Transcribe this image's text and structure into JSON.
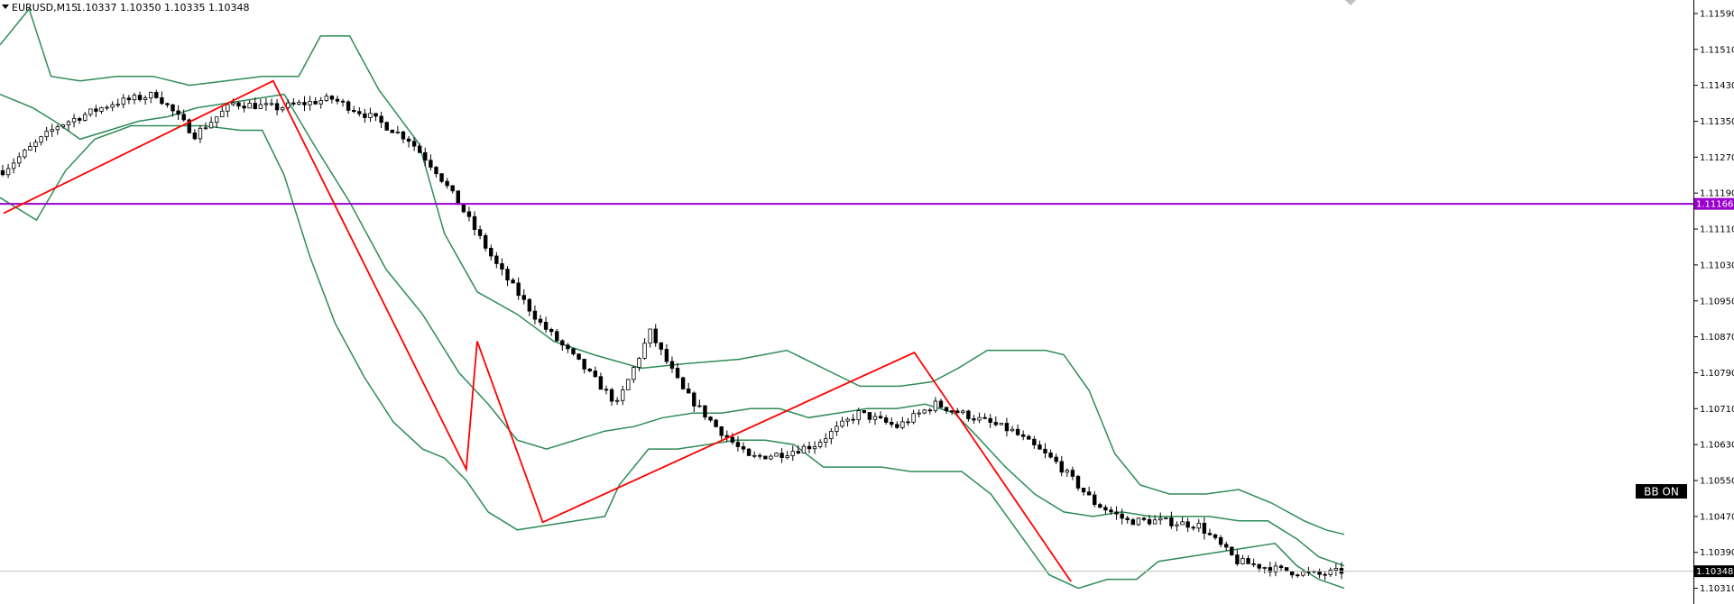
{
  "header": {
    "symbol": "EURUSD,M15",
    "ohlc": "1.10337 1.10350 1.10335 1.10348"
  },
  "price_tags": {
    "hline": "1.11166",
    "bid": "1.10348"
  },
  "bb_button": {
    "label": "BB ON"
  },
  "colors": {
    "background": "#ffffff",
    "bands": "#2e8b57",
    "zigzag": "#ff0000",
    "hline": "#9900cc",
    "bid_line": "#c0c0c0",
    "candle": "#000000"
  },
  "chart_data": {
    "type": "candlestick",
    "title": "",
    "xlabel": "",
    "ylabel": "",
    "ylim": [
      1.10275,
      1.1162
    ],
    "y_ticks": [
      "1.11590",
      "1.11510",
      "1.11430",
      "1.11350",
      "1.11270",
      "1.11190",
      "1.11110",
      "1.11030",
      "1.10950",
      "1.10870",
      "1.10790",
      "1.10710",
      "1.10630",
      "1.10550",
      "1.10470",
      "1.10390",
      "1.10310"
    ],
    "candle_count": 245,
    "horizontal_line": 1.11166,
    "bid": 1.10348,
    "close_anchors": [
      [
        0,
        1.1124
      ],
      [
        10,
        1.1134
      ],
      [
        20,
        1.1139
      ],
      [
        28,
        1.1141
      ],
      [
        35,
        1.1132
      ],
      [
        42,
        1.1139
      ],
      [
        50,
        1.1138
      ],
      [
        60,
        1.114
      ],
      [
        67,
        1.1136
      ],
      [
        74,
        1.1131
      ],
      [
        79,
        1.1124
      ],
      [
        84,
        1.1115
      ],
      [
        90,
        1.1103
      ],
      [
        98,
        1.109
      ],
      [
        106,
        1.108
      ],
      [
        112,
        1.1072
      ],
      [
        118,
        1.1088
      ],
      [
        124,
        1.1075
      ],
      [
        130,
        1.1067
      ],
      [
        136,
        1.106
      ],
      [
        142,
        1.1061
      ],
      [
        148,
        1.1063
      ],
      [
        156,
        1.107
      ],
      [
        163,
        1.1067
      ],
      [
        170,
        1.1072
      ],
      [
        177,
        1.1069
      ],
      [
        184,
        1.1066
      ],
      [
        192,
        1.1059
      ],
      [
        199,
        1.105
      ],
      [
        205,
        1.1046
      ],
      [
        211,
        1.1046
      ],
      [
        218,
        1.1045
      ],
      [
        225,
        1.1037
      ],
      [
        233,
        1.1035
      ],
      [
        240,
        1.1034
      ],
      [
        244,
        1.10348
      ]
    ],
    "zigzag": [
      [
        0,
        1.11145
      ],
      [
        74,
        1.1144
      ],
      [
        127,
        1.10575
      ],
      [
        130,
        1.1086
      ],
      [
        148,
        1.10457
      ],
      [
        250,
        1.10835
      ],
      [
        293,
        1.10325
      ]
    ],
    "bands_upper": [
      [
        0,
        1.1152
      ],
      [
        8,
        1.116
      ],
      [
        14,
        1.1145
      ],
      [
        22,
        1.1144
      ],
      [
        32,
        1.1145
      ],
      [
        42,
        1.1145
      ],
      [
        52,
        1.1143
      ],
      [
        62,
        1.1144
      ],
      [
        72,
        1.1145
      ],
      [
        82,
        1.1145
      ],
      [
        88,
        1.1154
      ],
      [
        96,
        1.1154
      ],
      [
        104,
        1.1142
      ],
      [
        115,
        1.113
      ],
      [
        122,
        1.111
      ],
      [
        131,
        1.1097
      ],
      [
        142,
        1.1092
      ],
      [
        152,
        1.1086
      ],
      [
        163,
        1.1083
      ],
      [
        176,
        1.108
      ],
      [
        188,
        1.1081
      ],
      [
        203,
        1.1082
      ],
      [
        216,
        1.1084
      ],
      [
        226,
        1.108
      ],
      [
        236,
        1.1076
      ],
      [
        247,
        1.1076
      ],
      [
        256,
        1.1077
      ],
      [
        263,
        1.108
      ],
      [
        271,
        1.1084
      ],
      [
        279,
        1.1084
      ],
      [
        287,
        1.1084
      ],
      [
        292,
        1.1083
      ],
      [
        299,
        1.1075
      ],
      [
        306,
        1.1061
      ],
      [
        313,
        1.1054
      ],
      [
        321,
        1.1052
      ],
      [
        331,
        1.1052
      ],
      [
        340,
        1.1053
      ],
      [
        349,
        1.105
      ],
      [
        358,
        1.1046
      ],
      [
        364,
        1.1044
      ],
      [
        369,
        1.1043
      ]
    ],
    "bands_middle": [
      [
        0,
        1.1141
      ],
      [
        9,
        1.1138
      ],
      [
        15,
        1.1135
      ],
      [
        22,
        1.1131
      ],
      [
        30,
        1.1133
      ],
      [
        38,
        1.1135
      ],
      [
        46,
        1.1136
      ],
      [
        54,
        1.1138
      ],
      [
        62,
        1.1139
      ],
      [
        70,
        1.114
      ],
      [
        78,
        1.1141
      ],
      [
        86,
        1.113
      ],
      [
        96,
        1.1117
      ],
      [
        106,
        1.1102
      ],
      [
        116,
        1.1092
      ],
      [
        126,
        1.1079
      ],
      [
        134,
        1.1072
      ],
      [
        142,
        1.1064
      ],
      [
        150,
        1.1062
      ],
      [
        158,
        1.1064
      ],
      [
        166,
        1.1066
      ],
      [
        174,
        1.1067
      ],
      [
        182,
        1.1069
      ],
      [
        190,
        1.107
      ],
      [
        198,
        1.107
      ],
      [
        206,
        1.1071
      ],
      [
        214,
        1.1071
      ],
      [
        222,
        1.1069
      ],
      [
        230,
        1.107
      ],
      [
        238,
        1.1071
      ],
      [
        246,
        1.1071
      ],
      [
        254,
        1.1072
      ],
      [
        262,
        1.107
      ],
      [
        268,
        1.1065
      ],
      [
        276,
        1.1058
      ],
      [
        284,
        1.1052
      ],
      [
        292,
        1.1048
      ],
      [
        300,
        1.1047
      ],
      [
        308,
        1.1048
      ],
      [
        316,
        1.1047
      ],
      [
        324,
        1.1047
      ],
      [
        332,
        1.1047
      ],
      [
        340,
        1.1046
      ],
      [
        348,
        1.1046
      ],
      [
        356,
        1.1042
      ],
      [
        362,
        1.1038
      ],
      [
        369,
        1.1036
      ]
    ],
    "bands_lower": [
      [
        0,
        1.1118
      ],
      [
        10,
        1.1113
      ],
      [
        18,
        1.1124
      ],
      [
        26,
        1.1131
      ],
      [
        36,
        1.1134
      ],
      [
        46,
        1.1134
      ],
      [
        56,
        1.1134
      ],
      [
        66,
        1.1133
      ],
      [
        72,
        1.1133
      ],
      [
        78,
        1.1123
      ],
      [
        85,
        1.1105
      ],
      [
        92,
        1.109
      ],
      [
        100,
        1.1078
      ],
      [
        108,
        1.1068
      ],
      [
        116,
        1.1062
      ],
      [
        122,
        1.106
      ],
      [
        128,
        1.1055
      ],
      [
        134,
        1.1048
      ],
      [
        142,
        1.1044
      ],
      [
        150,
        1.1045
      ],
      [
        158,
        1.1046
      ],
      [
        166,
        1.1047
      ],
      [
        170,
        1.1054
      ],
      [
        178,
        1.1062
      ],
      [
        186,
        1.1062
      ],
      [
        194,
        1.1063
      ],
      [
        202,
        1.1064
      ],
      [
        210,
        1.1064
      ],
      [
        218,
        1.1063
      ],
      [
        226,
        1.1058
      ],
      [
        234,
        1.1058
      ],
      [
        242,
        1.1058
      ],
      [
        250,
        1.1057
      ],
      [
        257,
        1.1057
      ],
      [
        264,
        1.1057
      ],
      [
        272,
        1.1052
      ],
      [
        280,
        1.1043
      ],
      [
        288,
        1.1034
      ],
      [
        296,
        1.1031
      ],
      [
        304,
        1.1033
      ],
      [
        312,
        1.1033
      ],
      [
        318,
        1.1037
      ],
      [
        326,
        1.1038
      ],
      [
        334,
        1.1039
      ],
      [
        342,
        1.104
      ],
      [
        350,
        1.1041
      ],
      [
        356,
        1.1036
      ],
      [
        362,
        1.1033
      ],
      [
        369,
        1.1031
      ]
    ]
  }
}
